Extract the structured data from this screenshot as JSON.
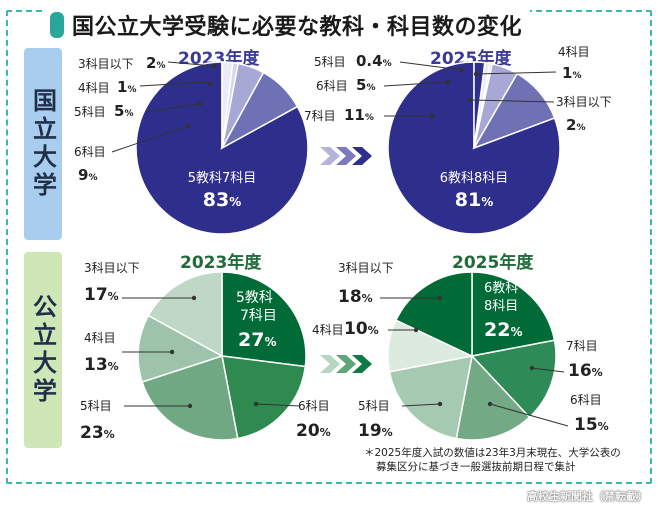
{
  "title": "国公立大学受験に必要な教科・科目数の変化",
  "side_labels": {
    "national": "国立大学",
    "public": "公立大学"
  },
  "note_lines": [
    "＊2025年度入試の数値は23年3月末現在、大学公表の",
    "募集区分に基づき一般選抜前期日程で集計"
  ],
  "credit": "高校生新聞社（禁転載）",
  "colors": {
    "national": [
      "#2e2e8c",
      "#7070b4",
      "#a8a8d6",
      "#d6d6ec",
      "#ececf6"
    ],
    "public_2023": [
      "#006b36",
      "#2f8a4f",
      "#6fa883",
      "#9dc3aa",
      "#bfd8c6"
    ],
    "public_2025": [
      "#006b36",
      "#2e8b57",
      "#74a986",
      "#a6c9b2",
      "#dceadf"
    ]
  },
  "chart_data": [
    {
      "type": "pie",
      "title": "2023年度",
      "group": "国立大学",
      "slices": [
        {
          "label": "5教科7科目",
          "value": 83
        },
        {
          "label": "6科目",
          "value": 9
        },
        {
          "label": "5科目",
          "value": 5
        },
        {
          "label": "4科目",
          "value": 1
        },
        {
          "label": "3科目以下",
          "value": 2
        }
      ]
    },
    {
      "type": "pie",
      "title": "2025年度",
      "group": "国立大学",
      "slices": [
        {
          "label": "6教科8科目",
          "value": 81
        },
        {
          "label": "7科目",
          "value": 11
        },
        {
          "label": "6科目",
          "value": 5
        },
        {
          "label": "5科目",
          "value": 0.4
        },
        {
          "label": "4科目",
          "value": 1
        },
        {
          "label": "3科目以下",
          "value": 2
        }
      ]
    },
    {
      "type": "pie",
      "title": "2023年度",
      "group": "公立大学",
      "slices": [
        {
          "label": "5教科7科目",
          "value": 27
        },
        {
          "label": "6科目",
          "value": 20
        },
        {
          "label": "5科目",
          "value": 23
        },
        {
          "label": "4科目",
          "value": 13
        },
        {
          "label": "3科目以下",
          "value": 17
        }
      ]
    },
    {
      "type": "pie",
      "title": "2025年度",
      "group": "公立大学",
      "slices": [
        {
          "label": "6教科8科目",
          "value": 22
        },
        {
          "label": "7科目",
          "value": 16
        },
        {
          "label": "6科目",
          "value": 15
        },
        {
          "label": "5科目",
          "value": 19
        },
        {
          "label": "4科目",
          "value": 10
        },
        {
          "label": "3科目以下",
          "value": 18
        }
      ]
    }
  ]
}
